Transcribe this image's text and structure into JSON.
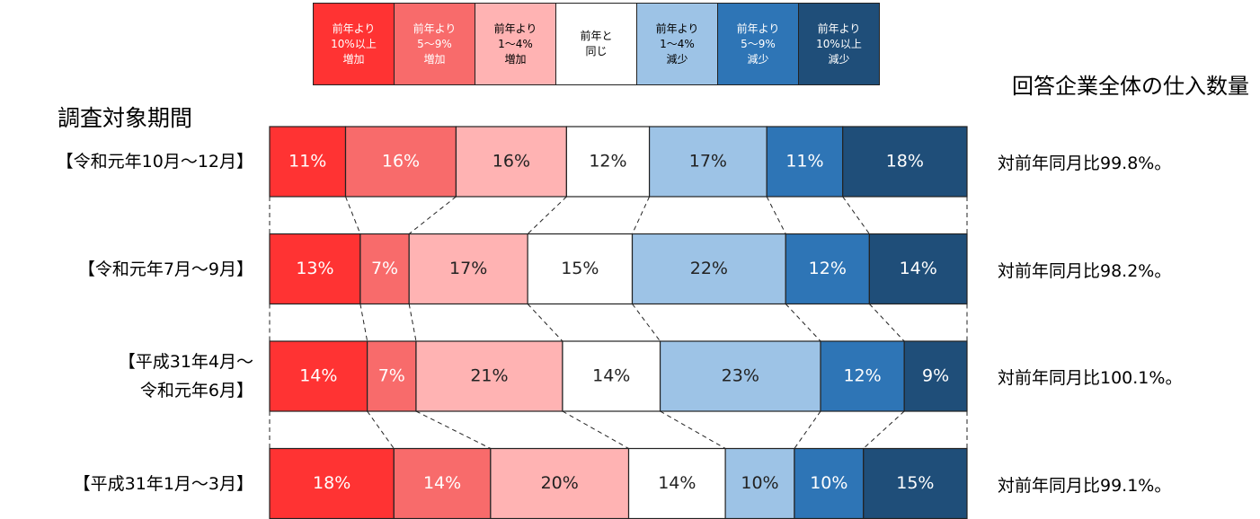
{
  "chart_data": {
    "type": "bar",
    "orientation": "horizontal",
    "stacked": true,
    "title": "調査対象期間",
    "subtitle": "回答企業全体の仕入数量",
    "categories": [
      "【令和元年10月～12月】",
      "【令和元年7月～9月】",
      "【平成31年4月～\n令和元年6月】",
      "【平成31年1月～3月】"
    ],
    "series": [
      {
        "name": "前年より\n10%以上\n増加",
        "color": "#ff3333",
        "values": [
          11,
          13,
          14,
          18
        ],
        "value_labels": [
          "11%",
          "13%",
          "14%",
          "18%"
        ]
      },
      {
        "name": "前年より\n5～9%\n増加",
        "color": "#f86b6b",
        "values": [
          16,
          7,
          7,
          14
        ],
        "value_labels": [
          "16%",
          "7%",
          "7%",
          "14%"
        ]
      },
      {
        "name": "前年より\n1～4%\n増加",
        "color": "#ffb3b3",
        "values": [
          16,
          17,
          21,
          20
        ],
        "value_labels": [
          "16%",
          "17%",
          "21%",
          "20%"
        ]
      },
      {
        "name": "前年と\n同じ",
        "color": "#ffffff",
        "values": [
          12,
          15,
          14,
          14
        ],
        "value_labels": [
          "12%",
          "15%",
          "14%",
          "14%"
        ]
      },
      {
        "name": "前年より\n1～4%\n減少",
        "color": "#9dc3e6",
        "values": [
          17,
          22,
          23,
          10
        ],
        "value_labels": [
          "17%",
          "22%",
          "23%",
          "10%"
        ]
      },
      {
        "name": "前年より\n5～9%\n減少",
        "color": "#2e75b6",
        "values": [
          11,
          12,
          12,
          10
        ],
        "value_labels": [
          "11%",
          "12%",
          "12%",
          "10%"
        ]
      },
      {
        "name": "前年より\n10%以上\n減少",
        "color": "#1f4e79",
        "values": [
          18,
          14,
          9,
          15
        ],
        "value_labels": [
          "18%",
          "14%",
          "9%",
          "15%"
        ]
      }
    ],
    "annotations": [
      "対前年同月比99.8%。",
      "対前年同月比98.2%。",
      "対前年同月比100.1%。",
      "対前年同月比99.1%。"
    ]
  }
}
